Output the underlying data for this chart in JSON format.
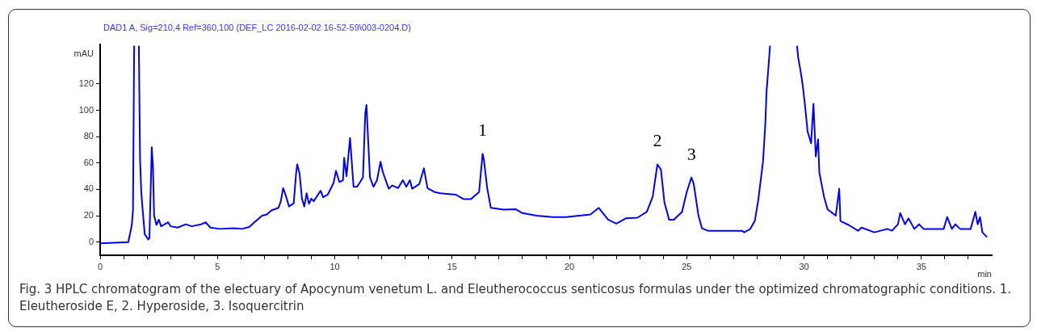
{
  "chart_data": {
    "type": "line",
    "title": "DAD1 A, Sig=210,4 Ref=360,100 (DEF_LC 2016-02-02 16-52-59\\003-0204.D)",
    "xlabel": "min",
    "ylabel": "mAU",
    "xlim": [
      0,
      38
    ],
    "ylim": [
      -10,
      150
    ],
    "xticks": [
      0,
      {
        "value": 1,
        "label": null
      },
      {
        "value": 2,
        "label": null
      },
      {
        "value": 3,
        "label": null
      },
      {
        "value": 4,
        "label": null
      },
      5,
      {
        "value": 6,
        "label": null
      },
      {
        "value": 7,
        "label": null
      },
      {
        "value": 8,
        "label": null
      },
      {
        "value": 9,
        "label": null
      },
      10,
      {
        "value": 11,
        "label": null
      },
      {
        "value": 12,
        "label": null
      },
      {
        "value": 13,
        "label": null
      },
      {
        "value": 14,
        "label": null
      },
      15,
      {
        "value": 16,
        "label": null
      },
      {
        "value": 17,
        "label": null
      },
      {
        "value": 18,
        "label": null
      },
      {
        "value": 19,
        "label": null
      },
      20,
      {
        "value": 21,
        "label": null
      },
      {
        "value": 22,
        "label": null
      },
      {
        "value": 23,
        "label": null
      },
      {
        "value": 24,
        "label": null
      },
      25,
      {
        "value": 26,
        "label": null
      },
      {
        "value": 27,
        "label": null
      },
      {
        "value": 28,
        "label": null
      },
      {
        "value": 29,
        "label": null
      },
      30,
      {
        "value": 31,
        "label": null
      },
      {
        "value": 32,
        "label": null
      },
      {
        "value": 33,
        "label": null
      },
      {
        "value": 34,
        "label": null
      },
      35,
      {
        "value": 36,
        "label": null
      },
      {
        "value": 37,
        "label": null
      }
    ],
    "yticks": [
      0,
      20,
      40,
      60,
      80,
      100,
      120
    ],
    "grid": false,
    "legend": false,
    "marker": "none",
    "line_style": "solid",
    "annotations": [
      {
        "text": "1",
        "x": 16.3,
        "y": 67
      },
      {
        "text": "2",
        "x": 23.75,
        "y": 59
      },
      {
        "text": "3",
        "x": 25.2,
        "y": 49
      },
      "Fig. 3  HPLC chromatogram of the electuary of Apocynum venetum L. and Eleutherococcus senticosus formulas under the optimized chromatographic conditions. 1. Eleutheroside E, 2. Hyperoside, 3. Isoquercitrin"
    ],
    "series": [
      {
        "color": "#0000ff",
        "x": [
          0,
          1.2,
          1.35,
          1.4,
          1.45,
          null,
          1.65,
          1.7,
          1.75,
          1.8,
          1.9,
          2.05,
          2.1,
          2.2,
          2.25,
          2.3,
          2.4,
          2.5,
          2.6,
          2.9,
          3.0,
          3.3,
          3.65,
          3.9,
          4.3,
          4.5,
          4.7,
          5.1,
          5.7,
          6.05,
          6.35,
          6.7,
          6.9,
          7.1,
          7.3,
          7.6,
          7.7,
          7.8,
          7.9,
          8.05,
          8.25,
          8.35,
          8.4,
          8.5,
          8.6,
          8.7,
          8.8,
          8.9,
          9.0,
          9.1,
          9.4,
          9.5,
          9.7,
          9.95,
          10.05,
          10.2,
          10.35,
          10.4,
          10.5,
          10.65,
          10.8,
          10.95,
          11.2,
          11.3,
          11.35,
          11.4,
          11.5,
          11.65,
          11.8,
          11.95,
          12.05,
          12.3,
          12.45,
          12.7,
          12.9,
          13.05,
          13.2,
          13.3,
          13.6,
          13.8,
          13.95,
          14.25,
          14.5,
          15.15,
          15.5,
          15.8,
          16.15,
          16.3,
          16.35,
          16.5,
          16.65,
          17.2,
          17.7,
          18.0,
          18.6,
          19.3,
          19.85,
          20.9,
          21.25,
          21.65,
          22.0,
          22.4,
          22.9,
          23.3,
          23.55,
          23.75,
          23.9,
          24.05,
          24.25,
          24.45,
          24.8,
          25.0,
          25.2,
          25.3,
          25.5,
          25.65,
          25.9,
          27.35,
          27.45,
          27.7,
          27.9,
          28.05,
          28.25,
          28.35,
          28.4,
          28.5,
          28.55,
          null,
          29.7,
          29.75,
          29.85,
          29.95,
          30.05,
          30.15,
          30.3,
          30.4,
          30.5,
          30.6,
          30.65,
          30.85,
          31.0,
          31.35,
          31.5,
          31.55,
          31.9,
          32.3,
          32.45,
          33.0,
          33.55,
          33.75,
          34.0,
          34.1,
          34.3,
          34.45,
          34.7,
          34.9,
          35.1,
          35.3,
          35.95,
          36.1,
          36.3,
          36.45,
          36.65,
          37.1,
          37.3,
          37.4,
          37.5,
          37.6,
          37.8
        ],
        "values": [
          -1,
          0,
          13,
          24,
          149,
          null,
          149,
          64,
          39,
          27,
          6,
          2,
          3,
          72,
          58,
          20,
          13,
          17,
          12,
          15,
          12,
          11,
          13.5,
          12,
          13.5,
          15,
          11,
          10,
          10.5,
          10,
          11.5,
          17,
          20,
          21,
          24,
          26,
          31,
          41,
          36,
          27,
          29.5,
          52,
          59,
          52,
          33,
          27,
          37,
          29,
          33,
          31,
          39,
          34,
          36,
          45,
          54,
          45.5,
          47,
          64,
          50,
          79,
          42,
          42,
          49,
          98,
          104,
          85.5,
          49,
          42,
          47,
          61,
          53,
          40.5,
          43,
          41,
          47,
          42,
          47,
          40.5,
          44,
          56,
          41,
          38,
          37,
          36,
          32.6,
          32.6,
          38,
          67,
          63,
          40.5,
          26,
          24.6,
          25,
          22,
          20,
          19,
          19,
          21,
          26,
          17,
          14,
          18,
          18.5,
          23,
          34.5,
          59,
          55,
          30,
          17,
          17,
          23,
          38,
          49,
          44,
          20,
          10.5,
          8.6,
          8.6,
          7.4,
          9.8,
          16,
          32,
          61,
          90,
          114,
          137,
          149,
          null,
          149,
          140,
          130,
          118,
          102,
          84,
          75,
          105,
          65,
          78,
          53,
          34.5,
          25,
          20,
          40.5,
          16,
          13,
          8.6,
          11,
          7.4,
          10,
          8.6,
          13.5,
          22,
          13.5,
          18,
          10,
          13.5,
          10,
          10,
          10,
          19,
          10,
          13.5,
          10,
          10,
          23,
          13.5,
          19,
          7.4,
          3.7
        ]
      }
    ]
  }
}
